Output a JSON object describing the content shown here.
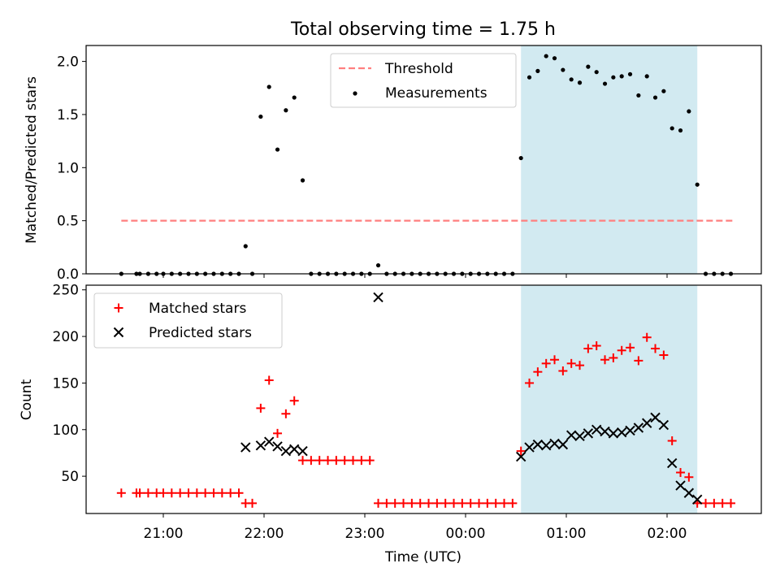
{
  "chart_data": [
    {
      "type": "scatter",
      "title": "Total observing time = 1.75 h",
      "xlabel": "",
      "ylabel": "Matched/Predicted stars",
      "ylim": [
        0,
        2.15
      ],
      "yticks": [
        "0.0",
        "0.5",
        "1.0",
        "1.5",
        "2.0"
      ],
      "legend_position": "upper center",
      "highlight": {
        "start": "00:33",
        "end": "02:18",
        "color": "#add8e6"
      },
      "threshold": {
        "name": "Threshold",
        "value": 0.5,
        "x_start": "20:35",
        "x_end": "02:40",
        "color": "#ff7f7f"
      },
      "series": [
        {
          "name": "Measurements",
          "color": "#000000",
          "points": [
            [
              "20:35",
              0
            ],
            [
              "20:44",
              0
            ],
            [
              "20:46",
              0
            ],
            [
              "20:51",
              0
            ],
            [
              "20:56",
              0
            ],
            [
              "21:00",
              0
            ],
            [
              "21:05",
              0
            ],
            [
              "21:10",
              0
            ],
            [
              "21:15",
              0
            ],
            [
              "21:20",
              0
            ],
            [
              "21:25",
              0
            ],
            [
              "21:30",
              0
            ],
            [
              "21:35",
              0
            ],
            [
              "21:40",
              0
            ],
            [
              "21:45",
              0
            ],
            [
              "21:49",
              0.26
            ],
            [
              "21:53",
              0
            ],
            [
              "21:58",
              1.48
            ],
            [
              "22:03",
              1.76
            ],
            [
              "22:08",
              1.17
            ],
            [
              "22:13",
              1.54
            ],
            [
              "22:18",
              1.66
            ],
            [
              "22:23",
              0.88
            ],
            [
              "22:28",
              0
            ],
            [
              "22:33",
              0
            ],
            [
              "22:38",
              0
            ],
            [
              "22:43",
              0
            ],
            [
              "22:48",
              0
            ],
            [
              "22:53",
              0
            ],
            [
              "22:58",
              0
            ],
            [
              "23:03",
              0
            ],
            [
              "23:08",
              0.08
            ],
            [
              "23:13",
              0
            ],
            [
              "23:18",
              0
            ],
            [
              "23:23",
              0
            ],
            [
              "23:28",
              0
            ],
            [
              "23:33",
              0
            ],
            [
              "23:38",
              0
            ],
            [
              "23:43",
              0
            ],
            [
              "23:48",
              0
            ],
            [
              "23:53",
              0
            ],
            [
              "23:58",
              0
            ],
            [
              "00:03",
              0
            ],
            [
              "00:08",
              0
            ],
            [
              "00:13",
              0
            ],
            [
              "00:18",
              0
            ],
            [
              "00:23",
              0
            ],
            [
              "00:28",
              0
            ],
            [
              "00:33",
              1.09
            ],
            [
              "00:38",
              1.85
            ],
            [
              "00:43",
              1.91
            ],
            [
              "00:48",
              2.05
            ],
            [
              "00:53",
              2.03
            ],
            [
              "00:58",
              1.92
            ],
            [
              "01:03",
              1.83
            ],
            [
              "01:08",
              1.8
            ],
            [
              "01:13",
              1.95
            ],
            [
              "01:18",
              1.9
            ],
            [
              "01:23",
              1.79
            ],
            [
              "01:28",
              1.85
            ],
            [
              "01:33",
              1.86
            ],
            [
              "01:38",
              1.88
            ],
            [
              "01:43",
              1.68
            ],
            [
              "01:48",
              1.86
            ],
            [
              "01:53",
              1.66
            ],
            [
              "01:58",
              1.72
            ],
            [
              "02:03",
              1.37
            ],
            [
              "02:08",
              1.35
            ],
            [
              "02:13",
              1.53
            ],
            [
              "02:18",
              0.84
            ],
            [
              "02:23",
              0
            ],
            [
              "02:28",
              0
            ],
            [
              "02:33",
              0
            ],
            [
              "02:38",
              0
            ]
          ]
        }
      ]
    },
    {
      "type": "scatter",
      "title": "",
      "xlabel": "Time (UTC)",
      "ylabel": "Count",
      "ylim": [
        10,
        255
      ],
      "yticks": [
        "50",
        "100",
        "150",
        "200",
        "250"
      ],
      "xticks": [
        "21:00",
        "22:00",
        "23:00",
        "00:00",
        "01:00",
        "02:00"
      ],
      "legend_position": "upper left",
      "highlight": {
        "start": "00:33",
        "end": "02:18",
        "color": "#add8e6"
      },
      "series": [
        {
          "name": "Matched stars",
          "marker": "+",
          "color": "#ff0000",
          "points": [
            [
              "20:35",
              32
            ],
            [
              "20:44",
              32
            ],
            [
              "20:46",
              32
            ],
            [
              "20:51",
              32
            ],
            [
              "20:56",
              32
            ],
            [
              "21:00",
              32
            ],
            [
              "21:05",
              32
            ],
            [
              "21:10",
              32
            ],
            [
              "21:15",
              32
            ],
            [
              "21:20",
              32
            ],
            [
              "21:25",
              32
            ],
            [
              "21:30",
              32
            ],
            [
              "21:35",
              32
            ],
            [
              "21:40",
              32
            ],
            [
              "21:45",
              32
            ],
            [
              "21:49",
              21
            ],
            [
              "21:53",
              21
            ],
            [
              "21:58",
              123
            ],
            [
              "22:03",
              153
            ],
            [
              "22:08",
              96
            ],
            [
              "22:13",
              117
            ],
            [
              "22:18",
              131
            ],
            [
              "22:23",
              67
            ],
            [
              "22:28",
              67
            ],
            [
              "22:33",
              67
            ],
            [
              "22:38",
              67
            ],
            [
              "22:43",
              67
            ],
            [
              "22:48",
              67
            ],
            [
              "22:53",
              67
            ],
            [
              "22:58",
              67
            ],
            [
              "23:03",
              67
            ],
            [
              "23:08",
              21
            ],
            [
              "23:13",
              21
            ],
            [
              "23:18",
              21
            ],
            [
              "23:23",
              21
            ],
            [
              "23:28",
              21
            ],
            [
              "23:33",
              21
            ],
            [
              "23:38",
              21
            ],
            [
              "23:43",
              21
            ],
            [
              "23:48",
              21
            ],
            [
              "23:53",
              21
            ],
            [
              "23:58",
              21
            ],
            [
              "00:03",
              21
            ],
            [
              "00:08",
              21
            ],
            [
              "00:13",
              21
            ],
            [
              "00:18",
              21
            ],
            [
              "00:23",
              21
            ],
            [
              "00:28",
              21
            ],
            [
              "00:33",
              77
            ],
            [
              "00:38",
              150
            ],
            [
              "00:43",
              162
            ],
            [
              "00:48",
              171
            ],
            [
              "00:53",
              175
            ],
            [
              "00:58",
              163
            ],
            [
              "01:03",
              171
            ],
            [
              "01:08",
              169
            ],
            [
              "01:13",
              187
            ],
            [
              "01:18",
              190
            ],
            [
              "01:23",
              175
            ],
            [
              "01:28",
              177
            ],
            [
              "01:33",
              185
            ],
            [
              "01:38",
              188
            ],
            [
              "01:43",
              174
            ],
            [
              "01:48",
              199
            ],
            [
              "01:53",
              187
            ],
            [
              "01:58",
              180
            ],
            [
              "02:03",
              88
            ],
            [
              "02:08",
              54
            ],
            [
              "02:13",
              49
            ],
            [
              "02:18",
              21
            ],
            [
              "02:23",
              21
            ],
            [
              "02:28",
              21
            ],
            [
              "02:33",
              21
            ],
            [
              "02:38",
              21
            ]
          ]
        },
        {
          "name": "Predicted stars",
          "marker": "x",
          "color": "#000000",
          "points": [
            [
              "21:49",
              81
            ],
            [
              "21:58",
              83
            ],
            [
              "22:03",
              87
            ],
            [
              "22:08",
              82
            ],
            [
              "22:13",
              77
            ],
            [
              "22:18",
              79
            ],
            [
              "22:23",
              77
            ],
            [
              "23:08",
              242
            ],
            [
              "00:33",
              71
            ],
            [
              "00:38",
              81
            ],
            [
              "00:43",
              84
            ],
            [
              "00:48",
              83
            ],
            [
              "00:53",
              85
            ],
            [
              "00:58",
              84
            ],
            [
              "01:03",
              94
            ],
            [
              "01:08",
              93
            ],
            [
              "01:13",
              96
            ],
            [
              "01:18",
              100
            ],
            [
              "01:23",
              98
            ],
            [
              "01:28",
              96
            ],
            [
              "01:33",
              97
            ],
            [
              "01:38",
              99
            ],
            [
              "01:43",
              102
            ],
            [
              "01:48",
              107
            ],
            [
              "01:53",
              113
            ],
            [
              "01:58",
              105
            ],
            [
              "02:03",
              64
            ],
            [
              "02:08",
              40
            ],
            [
              "02:13",
              32
            ],
            [
              "02:18",
              25
            ]
          ]
        }
      ]
    }
  ]
}
